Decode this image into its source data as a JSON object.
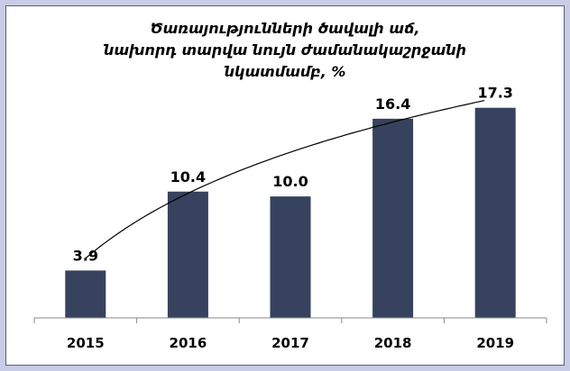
{
  "chart_data": {
    "type": "bar",
    "title_lines": [
      "Ծառայությունների ծավալի աճ,",
      "նախորդ տարվա նույն ժամանակաշրջանի",
      "նկատմամբ, %"
    ],
    "categories": [
      "2015",
      "2016",
      "2017",
      "2018",
      "2019"
    ],
    "values": [
      3.9,
      10.4,
      10.0,
      16.4,
      17.3
    ],
    "value_labels": [
      "3.9",
      "10.4",
      "10.0",
      "16.4",
      "17.3"
    ],
    "trendline": "smooth-curve",
    "ylim": [
      0,
      19.8
    ],
    "bar_color": "#36425e",
    "grid": false,
    "legend": "none"
  }
}
